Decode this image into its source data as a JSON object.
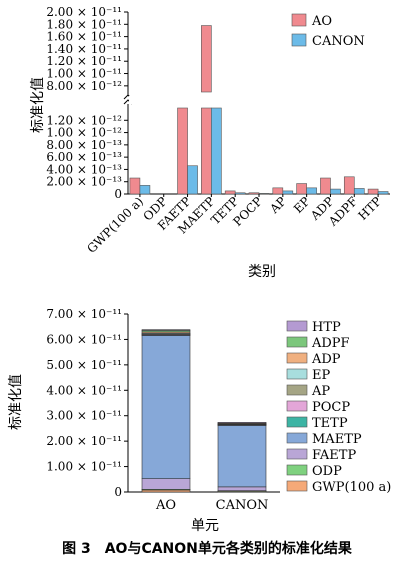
{
  "caption": "图 3　AO与CANON单元各类别的标准化结果",
  "chart_data": [
    {
      "type": "bar",
      "ylabel": "标准化值",
      "xlabel": "类别",
      "categories": [
        "GWP(100 a)",
        "ODP",
        "FAETP",
        "MAETP",
        "TETP",
        "POCP",
        "AP",
        "EP",
        "ADP",
        "ADPF",
        "HTP"
      ],
      "series": [
        {
          "name": "AO",
          "color": "#f08a8f",
          "values": [
            2.6e-13,
            0,
            1.45e-12,
            1.78e-11,
            5e-14,
            2e-14,
            1e-13,
            1.7e-13,
            2.6e-13,
            2.8e-13,
            8e-14
          ]
        },
        {
          "name": "CANON",
          "color": "#6cbbe8",
          "values": [
            1.4e-13,
            0,
            4.6e-13,
            7e-12,
            2e-14,
            1e-14,
            5e-14,
            1e-13,
            8e-14,
            9e-14,
            4e-14
          ]
        }
      ],
      "broken_axis": true,
      "lower_ylim": [
        0,
        1.4e-12
      ],
      "upper_ylim": [
        7e-12,
        2e-11
      ],
      "lower_ticks": [
        "0",
        "2.00 × 10⁻¹³",
        "4.00 × 10⁻¹³",
        "6.00 × 10⁻¹³",
        "8.00 × 10⁻¹³",
        "1.00 × 10⁻¹²",
        "1.20 × 10⁻¹²"
      ],
      "upper_ticks": [
        "8.00 × 10⁻¹²",
        "1.00 × 10⁻¹¹",
        "1.20 × 10⁻¹¹",
        "1.40 × 10⁻¹¹",
        "1.60 × 10⁻¹¹",
        "1.80 × 10⁻¹¹",
        "2.00 × 10⁻¹¹"
      ],
      "legend": "top-right"
    },
    {
      "type": "bar",
      "stacked": true,
      "ylabel": "标准化值",
      "xlabel": "单元",
      "categories": [
        "AO",
        "CANON"
      ],
      "ylim": [
        0,
        7e-11
      ],
      "ticks": [
        "0",
        "1.00 × 10⁻¹¹",
        "2.00 × 10⁻¹¹",
        "3.00 × 10⁻¹¹",
        "4.00 × 10⁻¹¹",
        "5.00 × 10⁻¹¹",
        "6.00 × 10⁻¹¹",
        "7.00 × 10⁻¹¹"
      ],
      "series": [
        {
          "name": "GWP(100 a)",
          "color": "#f5a978",
          "values": [
            1e-12,
            5e-13
          ]
        },
        {
          "name": "ODP",
          "color": "#7fd17f",
          "values": [
            5e-14,
            2e-14
          ]
        },
        {
          "name": "FAETP",
          "color": "#b9a6d6",
          "values": [
            4.2e-12,
            1.5e-12
          ]
        },
        {
          "name": "MAETP",
          "color": "#86a8d8",
          "values": [
            5.65e-11,
            2.44e-11
          ]
        },
        {
          "name": "TETP",
          "color": "#3cb4a4",
          "values": [
            1e-13,
            5e-14
          ]
        },
        {
          "name": "POCP",
          "color": "#e3a6d8",
          "values": [
            1e-13,
            5e-14
          ]
        },
        {
          "name": "AP",
          "color": "#a5a585",
          "values": [
            3e-13,
            1.5e-13
          ]
        },
        {
          "name": "EP",
          "color": "#a8dede",
          "values": [
            2e-13,
            1e-13
          ]
        },
        {
          "name": "ADP",
          "color": "#f0b080",
          "values": [
            5e-13,
            2e-13
          ]
        },
        {
          "name": "ADPF",
          "color": "#7cc77c",
          "values": [
            6e-13,
            3e-13
          ]
        },
        {
          "name": "HTP",
          "color": "#b49ad2",
          "values": [
            3e-13,
            1e-13
          ]
        }
      ],
      "legend_order": [
        "HTP",
        "ADPF",
        "ADP",
        "EP",
        "AP",
        "POCP",
        "TETP",
        "MAETP",
        "FAETP",
        "ODP",
        "GWP(100 a)"
      ],
      "legend": "right"
    }
  ]
}
